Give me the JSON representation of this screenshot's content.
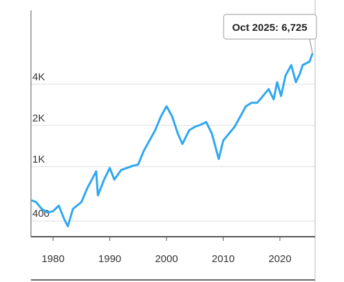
{
  "chart_data": {
    "type": "line",
    "log_scale": true,
    "grid": true,
    "annotation": "Oct 2025: 6,725",
    "x": [
      1976.2,
      1977,
      1978,
      1979,
      1980,
      1981,
      1982,
      1982.6,
      1983.5,
      1985,
      1986,
      1987.6,
      1987.9,
      1989,
      1990,
      1990.8,
      1992,
      1994,
      1995,
      1996,
      1997,
      1998,
      1999,
      2000,
      2001,
      2002,
      2002.8,
      2004,
      2005,
      2006,
      2007,
      2008,
      2009.2,
      2010,
      2011,
      2012,
      2013,
      2014,
      2015,
      2016,
      2017,
      2018,
      2018.9,
      2019.5,
      2020.2,
      2021,
      2022,
      2022.8,
      2023.5,
      2024,
      2025.2,
      2025.75
    ],
    "series": [
      {
        "color": "#2ea7f0",
        "values": [
          567,
          550,
          490,
          461,
          472,
          518,
          410,
          366,
          490,
          550,
          691,
          923,
          616,
          803,
          977,
          803,
          944,
          1012,
          1035,
          1304,
          1551,
          1843,
          2322,
          2762,
          2322,
          1741,
          1464,
          1843,
          1953,
          2022,
          2118,
          1741,
          1135,
          1551,
          1741,
          1953,
          2322,
          2762,
          2928,
          2928,
          3284,
          3684,
          3102,
          4140,
          3284,
          4646,
          5520,
          4140,
          4760,
          5520,
          5848,
          6725
        ]
      }
    ],
    "xlim": [
      1976.1,
      2026.2
    ],
    "xticks": [
      1980,
      1990,
      2000,
      2010,
      2020
    ],
    "ylim": [
      307,
      13900
    ],
    "yticks": [
      {
        "value": 400,
        "label": "400"
      },
      {
        "value": 1000,
        "label": "1K"
      },
      {
        "value": 2000,
        "label": "2K"
      },
      {
        "value": 4000,
        "label": "4K"
      }
    ]
  }
}
